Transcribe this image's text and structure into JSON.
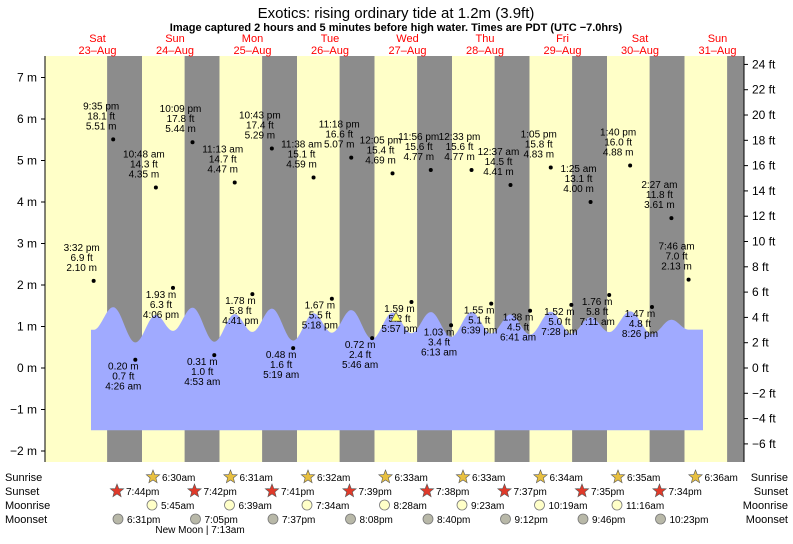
{
  "title": "Exotics: rising  ordinary tide at 1.2m (3.9ft)",
  "subtitle": "Image captured 2 hours and 5 minutes before high water. Times are PDT (UTC −7.0hrs)",
  "colors": {
    "day_bg": "#ffffc8",
    "night_bg": "#8c8c8c",
    "tide_fill": "#a0aaff",
    "day_label": "#ff0000"
  },
  "days": [
    {
      "name": "Sat",
      "date": "23–Aug"
    },
    {
      "name": "Sun",
      "date": "24–Aug"
    },
    {
      "name": "Mon",
      "date": "25–Aug"
    },
    {
      "name": "Tue",
      "date": "26–Aug"
    },
    {
      "name": "Wed",
      "date": "27–Aug"
    },
    {
      "name": "Thu",
      "date": "28–Aug"
    },
    {
      "name": "Fri",
      "date": "29–Aug"
    },
    {
      "name": "Sat",
      "date": "30–Aug"
    },
    {
      "name": "Sun",
      "date": "31–Aug"
    }
  ],
  "chart_data": {
    "type": "area",
    "title": "Exotics: rising  ordinary tide at 1.2m (3.9ft)",
    "x_unit": "PDT",
    "left_axis": {
      "unit": "m",
      "ticks": [
        -2,
        -1,
        0,
        1,
        2,
        3,
        4,
        5,
        6,
        7
      ],
      "labels": [
        "−2 m",
        "−1 m",
        "0 m",
        "1 m",
        "2 m",
        "3 m",
        "4 m",
        "5 m",
        "6 m",
        "7 m"
      ],
      "ylim": [
        -2.2,
        7.5
      ]
    },
    "right_axis": {
      "unit": "ft",
      "ticks": [
        -6,
        -4,
        -2,
        0,
        2,
        4,
        6,
        8,
        10,
        12,
        14,
        16,
        18,
        20,
        22,
        24
      ],
      "labels": [
        "−6 ft",
        "−4 ft",
        "−2 ft",
        "0 ft",
        "2 ft",
        "4 ft",
        "6 ft",
        "8 ft",
        "10 ft",
        "12 ft",
        "14 ft",
        "16 ft",
        "18 ft",
        "20 ft",
        "22 ft",
        "24 ft"
      ]
    },
    "tides": [
      {
        "time": "3:32 pm",
        "day": "23–Aug",
        "m": 2.1,
        "ft": "6.9 ft",
        "type": "high"
      },
      {
        "time": "9:35 pm",
        "day": "23–Aug",
        "m": 5.51,
        "ft": "18.1 ft",
        "type": "high"
      },
      {
        "time": "4:26 am",
        "day": "24–Aug",
        "m": 0.2,
        "ft": "0.7 ft",
        "type": "low"
      },
      {
        "time": "10:48 am",
        "day": "24–Aug",
        "m": 4.35,
        "ft": "14.3 ft",
        "type": "high"
      },
      {
        "time": "4:06 pm",
        "day": "24–Aug",
        "m": 1.93,
        "ft": "6.3 ft",
        "type": "low"
      },
      {
        "time": "10:09 pm",
        "day": "24–Aug",
        "m": 5.44,
        "ft": "17.8 ft",
        "type": "high"
      },
      {
        "time": "4:53 am",
        "day": "25–Aug",
        "m": 0.31,
        "ft": "1.0 ft",
        "type": "low"
      },
      {
        "time": "11:13 am",
        "day": "25–Aug",
        "m": 4.47,
        "ft": "14.7 ft",
        "type": "high"
      },
      {
        "time": "4:41 pm",
        "day": "25–Aug",
        "m": 1.78,
        "ft": "5.8 ft",
        "type": "low"
      },
      {
        "time": "10:43 pm",
        "day": "25–Aug",
        "m": 5.29,
        "ft": "17.4 ft",
        "type": "high"
      },
      {
        "time": "5:19 am",
        "day": "26–Aug",
        "m": 0.48,
        "ft": "1.6 ft",
        "type": "low"
      },
      {
        "time": "11:38 am",
        "day": "26–Aug",
        "m": 4.59,
        "ft": "15.1 ft",
        "type": "high"
      },
      {
        "time": "5:18 pm",
        "day": "26–Aug",
        "m": 1.67,
        "ft": "5.5 ft",
        "type": "low"
      },
      {
        "time": "11:18 pm",
        "day": "26–Aug",
        "m": 5.07,
        "ft": "16.6 ft",
        "type": "high"
      },
      {
        "time": "5:46 am",
        "day": "27–Aug",
        "m": 0.72,
        "ft": "2.4 ft",
        "type": "low"
      },
      {
        "time": "12:05 pm",
        "day": "27–Aug",
        "m": 4.69,
        "ft": "15.4 ft",
        "type": "high"
      },
      {
        "time": "5:57 pm",
        "day": "27–Aug",
        "m": 1.59,
        "ft": "5.2 ft",
        "type": "low"
      },
      {
        "time": "11:56 pm",
        "day": "27–Aug",
        "m": 4.77,
        "ft": "15.6 ft",
        "type": "high"
      },
      {
        "time": "6:13 am",
        "day": "28–Aug",
        "m": 1.03,
        "ft": "3.4 ft",
        "type": "low"
      },
      {
        "time": "12:33 pm",
        "day": "28–Aug",
        "m": 4.77,
        "ft": "15.6 ft",
        "type": "high"
      },
      {
        "time": "6:39 pm",
        "day": "28–Aug",
        "m": 1.55,
        "ft": "5.1 ft",
        "type": "low"
      },
      {
        "time": "12:37 am",
        "day": "29–Aug",
        "m": 4.41,
        "ft": "14.5 ft",
        "type": "high"
      },
      {
        "time": "6:41 am",
        "day": "29–Aug",
        "m": 1.38,
        "ft": "4.5 ft",
        "type": "low"
      },
      {
        "time": "1:05 pm",
        "day": "29–Aug",
        "m": 4.83,
        "ft": "15.8 ft",
        "type": "high"
      },
      {
        "time": "7:28 pm",
        "day": "29–Aug",
        "m": 1.52,
        "ft": "5.0 ft",
        "type": "low"
      },
      {
        "time": "1:25 am",
        "day": "30–Aug",
        "m": 4.0,
        "ft": "13.1 ft",
        "type": "high"
      },
      {
        "time": "7:11 am",
        "day": "30–Aug",
        "m": 1.76,
        "ft": "5.8 ft",
        "type": "low"
      },
      {
        "time": "1:40 pm",
        "day": "30–Aug",
        "m": 4.88,
        "ft": "16.0 ft",
        "type": "high"
      },
      {
        "time": "8:26 pm",
        "day": "30–Aug",
        "m": 1.47,
        "ft": "4.8 ft",
        "type": "low"
      },
      {
        "time": "2:27 am",
        "day": "31–Aug",
        "m": 3.61,
        "ft": "11.8 ft",
        "type": "high"
      },
      {
        "time": "7:46 am",
        "day": "31–Aug",
        "m": 2.13,
        "ft": "7.0 ft",
        "type": "high"
      }
    ],
    "current": {
      "m": 1.2,
      "ft": "3.9ft"
    }
  },
  "almanac": {
    "row_labels": {
      "sunrise": "Sunrise",
      "sunset": "Sunset",
      "moonrise": "Moonrise",
      "moonset": "Moonset"
    },
    "sunrise": [
      "6:30am",
      "6:31am",
      "6:32am",
      "6:33am",
      "6:33am",
      "6:34am",
      "6:35am",
      "6:36am"
    ],
    "sunset": [
      "7:44pm",
      "7:42pm",
      "7:41pm",
      "7:39pm",
      "7:38pm",
      "7:37pm",
      "7:35pm",
      "7:34pm"
    ],
    "moonrise": [
      "5:45am",
      "6:39am",
      "7:34am",
      "8:28am",
      "9:23am",
      "10:19am",
      "11:16am"
    ],
    "moonset": [
      "6:31pm",
      "7:05pm",
      "7:37pm",
      "8:08pm",
      "8:40pm",
      "9:12pm",
      "9:46pm",
      "10:23pm"
    ],
    "new_moon": "New Moon | 7:13am"
  }
}
